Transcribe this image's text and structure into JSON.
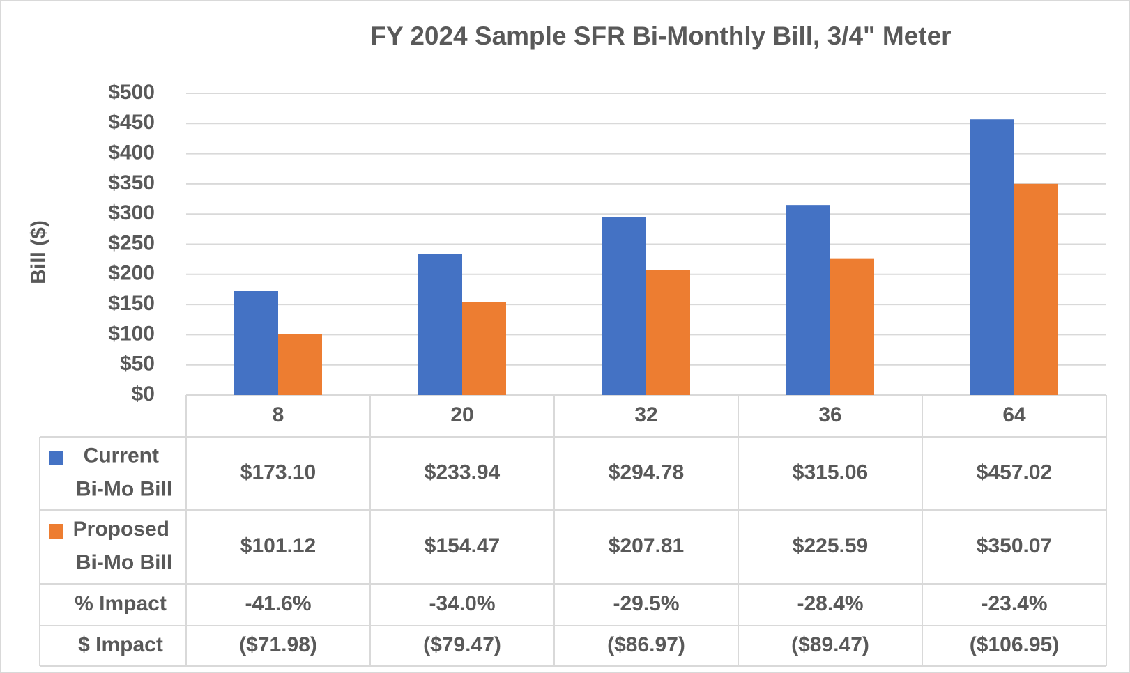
{
  "chart_data": {
    "type": "bar",
    "title": "FY 2024 Sample SFR Bi-Monthly Bill, 3/4\" Meter",
    "y_label": "Bill ($)",
    "categories": [
      "8",
      "20",
      "32",
      "36",
      "64"
    ],
    "series": [
      {
        "name": "Current Bi-Mo Bill",
        "color": "#4472c4",
        "values": [
          173.1,
          233.94,
          294.78,
          315.06,
          457.02
        ],
        "value_labels": [
          "$173.10",
          "$233.94",
          "$294.78",
          "$315.06",
          "$457.02"
        ]
      },
      {
        "name": "Proposed Bi-Mo Bill",
        "color": "#ed7d31",
        "values": [
          101.12,
          154.47,
          207.81,
          225.59,
          350.07
        ],
        "value_labels": [
          "$101.12",
          "$154.47",
          "$207.81",
          "$225.59",
          "$350.07"
        ]
      }
    ],
    "table_rows": [
      {
        "name": "% Impact",
        "values": [
          -41.6,
          -34.0,
          -29.5,
          -28.4,
          -23.4
        ],
        "value_labels": [
          "-41.6%",
          "-34.0%",
          "-29.5%",
          "-28.4%",
          "-23.4%"
        ]
      },
      {
        "name": "$ Impact",
        "values": [
          -71.98,
          -79.47,
          -86.97,
          -89.47,
          -106.95
        ],
        "value_labels": [
          "($71.98)",
          "($79.47)",
          "($86.97)",
          "($89.47)",
          "($106.95)"
        ]
      }
    ],
    "ylim": [
      0,
      500
    ],
    "yticks": [
      {
        "value": 0,
        "label": "$0"
      },
      {
        "value": 50,
        "label": "$50"
      },
      {
        "value": 100,
        "label": "$100"
      },
      {
        "value": 150,
        "label": "$150"
      },
      {
        "value": 200,
        "label": "$200"
      },
      {
        "value": 250,
        "label": "$250"
      },
      {
        "value": 300,
        "label": "$300"
      },
      {
        "value": 350,
        "label": "$350"
      },
      {
        "value": 400,
        "label": "$400"
      },
      {
        "value": 450,
        "label": "$450"
      },
      {
        "value": 500,
        "label": "$500"
      }
    ],
    "grid": true
  }
}
